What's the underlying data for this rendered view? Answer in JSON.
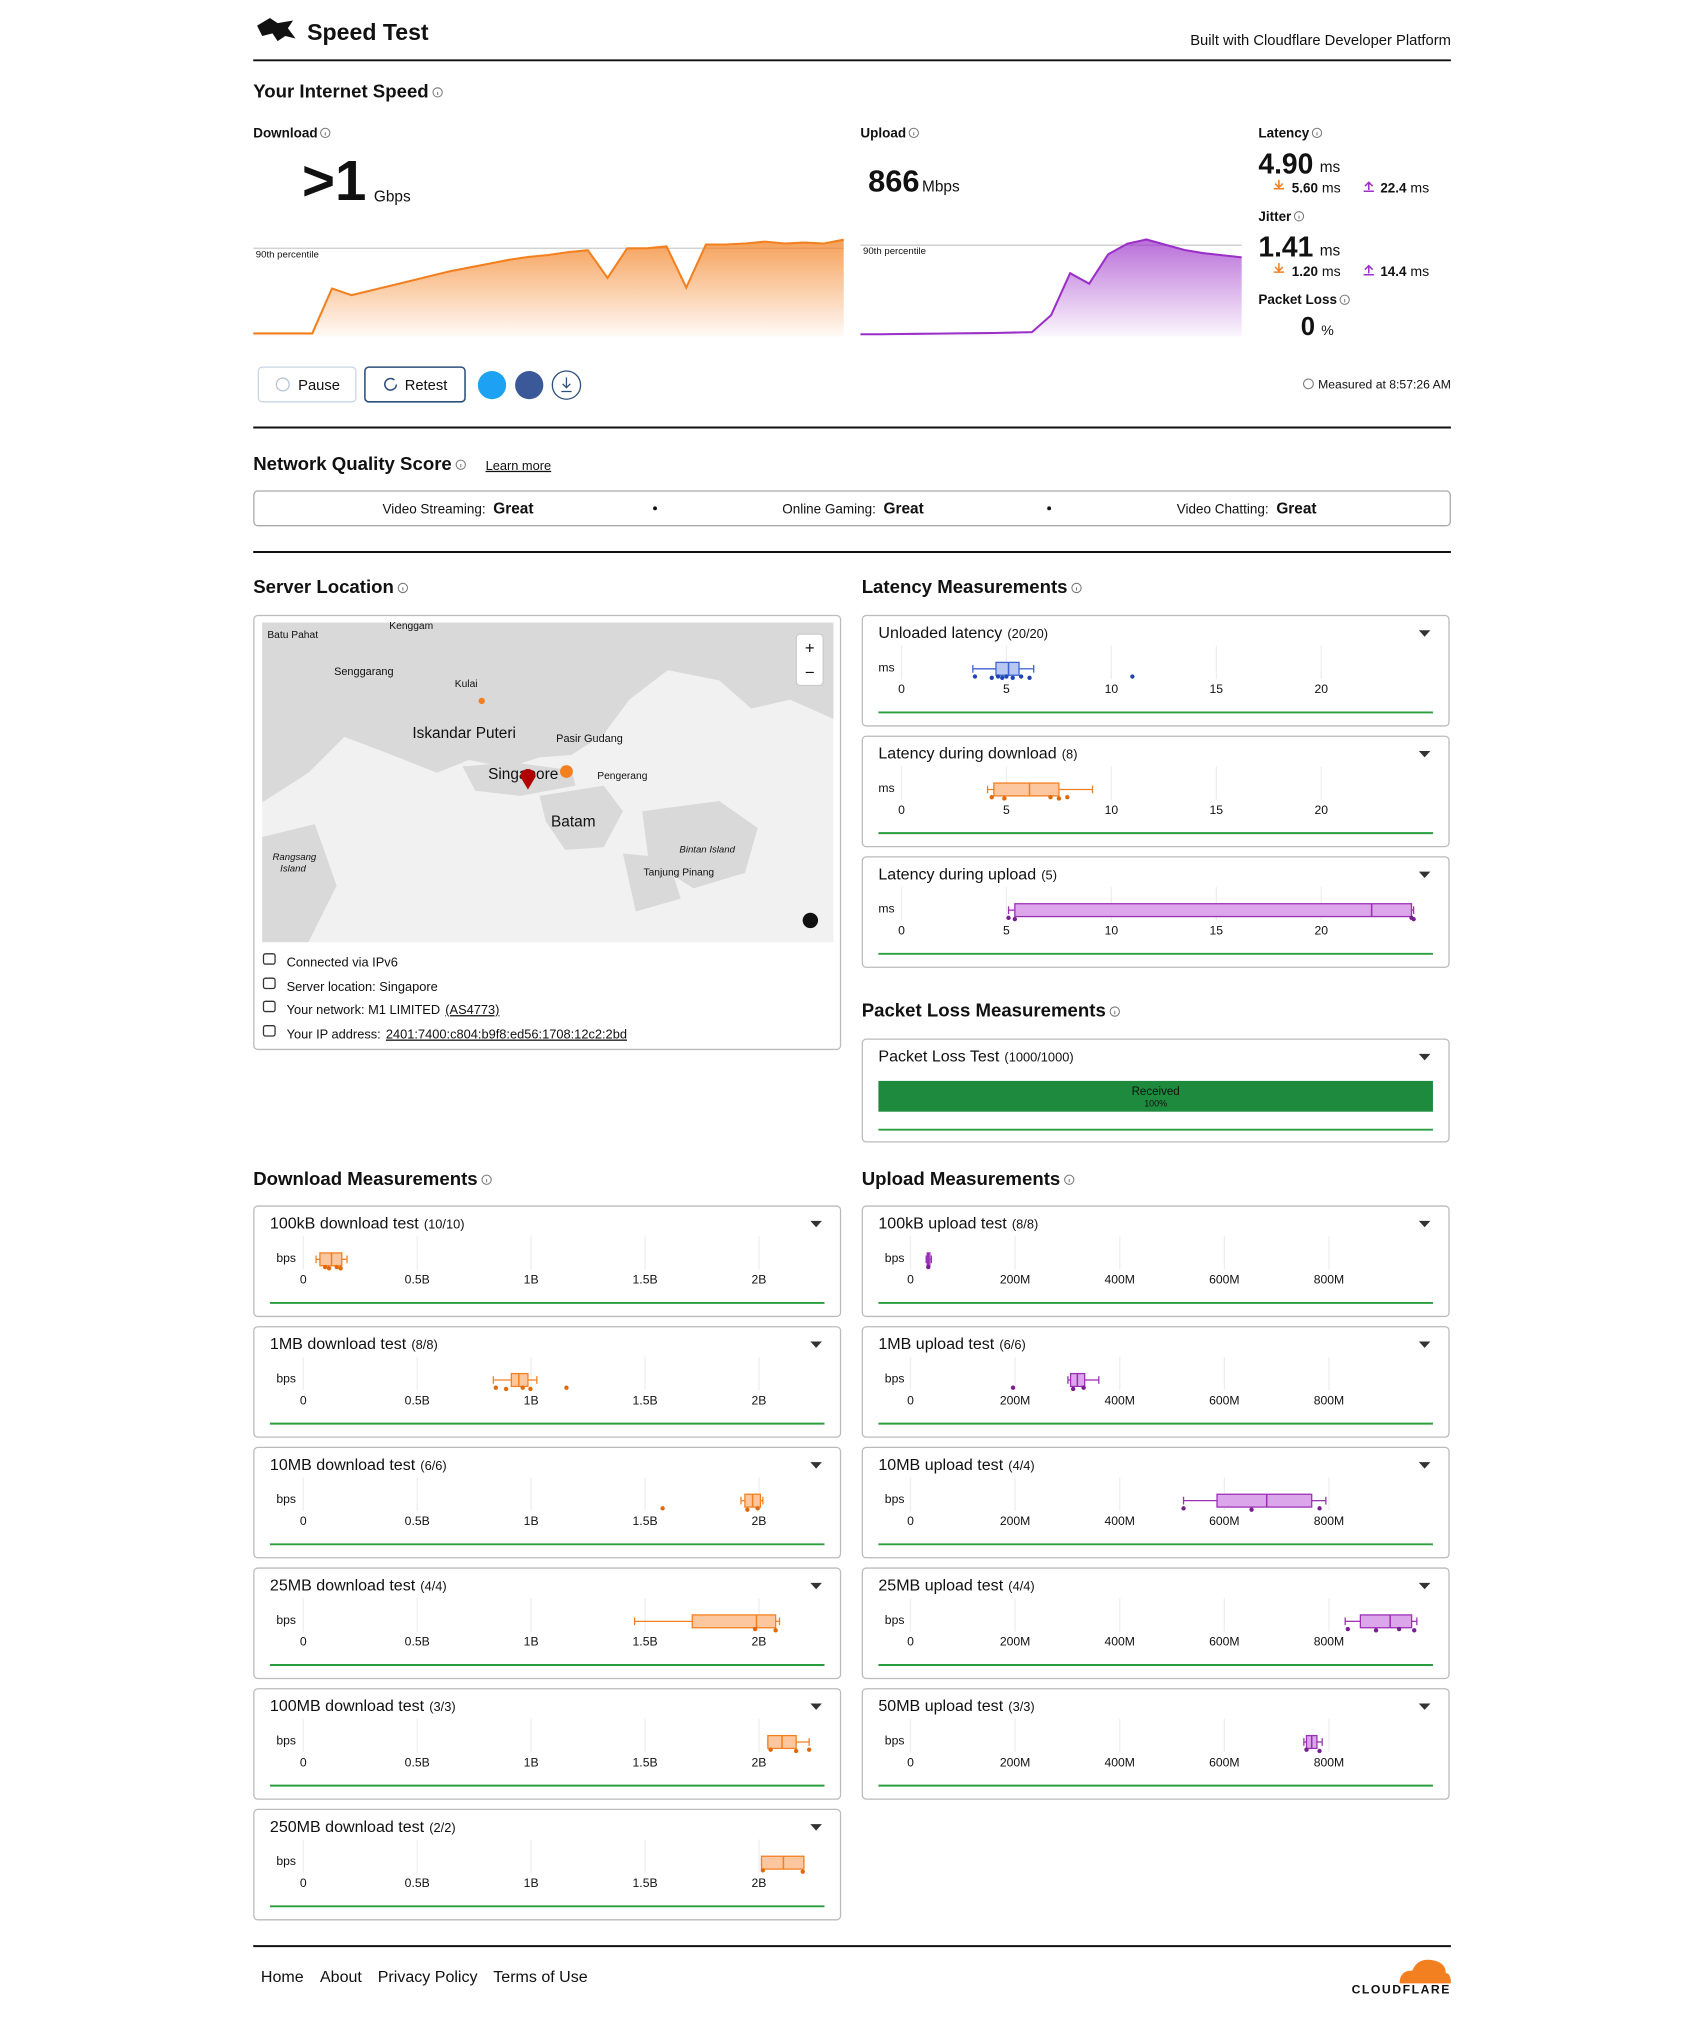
{
  "header": {
    "title": "Speed Test",
    "credit": "Built with Cloudflare Developer Platform"
  },
  "speed": {
    "title": "Your Internet Speed",
    "download": {
      "label": "Download",
      "value": ">1",
      "unit": "Gbps",
      "percentile_label": "90th percentile",
      "percentile": 920,
      "ylim": [
        0,
        1100
      ],
      "values": [
        30,
        30,
        30,
        30,
        500,
        430,
        480,
        530,
        580,
        630,
        680,
        720,
        760,
        800,
        830,
        850,
        880,
        900,
        610,
        920,
        920,
        940,
        510,
        960,
        960,
        970,
        990,
        970,
        980,
        970,
        1010
      ]
    },
    "upload": {
      "label": "Upload",
      "value": "866",
      "unit": "Mbps",
      "percentile_label": "90th percentile",
      "percentile": 866,
      "ylim": [
        0,
        1000
      ],
      "values": [
        20,
        20,
        22,
        24,
        26,
        28,
        30,
        32,
        36,
        40,
        200,
        600,
        500,
        780,
        880,
        920,
        870,
        820,
        790,
        770,
        750
      ]
    },
    "latency": {
      "label": "Latency",
      "value": "4.90",
      "unit": "ms",
      "down": "5.60",
      "down_unit": "ms",
      "up": "22.4",
      "up_unit": "ms"
    },
    "jitter": {
      "label": "Jitter",
      "value": "1.41",
      "unit": "ms",
      "down": "1.20",
      "down_unit": "ms",
      "up": "14.4",
      "up_unit": "ms"
    },
    "packet_loss": {
      "label": "Packet Loss",
      "value": "0",
      "unit": "%"
    },
    "buttons": [
      "Pause",
      "Retest"
    ],
    "measured": "Measured at 8:57:26 AM"
  },
  "quality": {
    "title": "Network Quality Score",
    "link": "Learn more",
    "items": [
      {
        "label": "Video Streaming:",
        "rating": "Great"
      },
      {
        "label": "Online Gaming:",
        "rating": "Great"
      },
      {
        "label": "Video Chatting:",
        "rating": "Great"
      }
    ]
  },
  "server": {
    "title": "Server Location",
    "map_labels": [
      "Batu Pahat",
      "Kenggam",
      "Senggarang",
      "Kulai",
      "Iskandar Puteri",
      "Pasir Gudang",
      "Singapore",
      "Pengerang",
      "Batam",
      "Rangsang",
      "Island",
      "Bintan Island",
      "Tanjung Pinang"
    ],
    "zoom": [
      "+",
      "−"
    ],
    "info": [
      {
        "text": "Connected via IPv6"
      },
      {
        "text": "Server location: Singapore"
      },
      {
        "text": "Your network: M1 LIMITED",
        "link": "(AS4773)"
      },
      {
        "text": "Your IP address:",
        "link": "2401:7400:c804:b9f8:ed56:1708:12c2:2bd"
      }
    ]
  },
  "latency_tests": {
    "title": "Latency Measurements",
    "unit": "ms",
    "xlim": [
      0,
      25
    ],
    "xticks": [
      0,
      5,
      10,
      15,
      20
    ],
    "tests": [
      {
        "name": "Unloaded latency",
        "count": "(20/20)",
        "box": {
          "min": 3.4,
          "q1": 4.5,
          "median": 5.1,
          "q3": 5.6,
          "max": 6.3
        },
        "points": [
          3.5,
          4.3,
          4.6,
          4.8,
          5.0,
          5.3,
          5.7,
          6.1,
          11.0
        ]
      },
      {
        "name": "Latency during download",
        "count": "(8)",
        "box": {
          "min": 4.1,
          "q1": 4.4,
          "median": 6.1,
          "q3": 7.5,
          "max": 9.1
        },
        "points": [
          4.3,
          4.9,
          7.1,
          7.5,
          7.9
        ]
      },
      {
        "name": "Latency during upload",
        "count": "(5)",
        "box": {
          "min": 5.1,
          "q1": 5.4,
          "median": 22.4,
          "q3": 24.3,
          "max": 24.4
        },
        "points": [
          5.1,
          5.4,
          24.3,
          24.4
        ]
      }
    ]
  },
  "packet_loss_tests": {
    "title": "Packet Loss Measurements",
    "name": "Packet Loss Test",
    "count": "(1000/1000)",
    "received": {
      "label": "Received",
      "value": 100,
      "value_label": "100%"
    }
  },
  "download_tests": {
    "title": "Download Measurements",
    "unit": "bps",
    "xlim": [
      0,
      2300000000
    ],
    "xticks": [
      0,
      {
        "value": 500000000,
        "label": "0.5B"
      },
      {
        "value": 1000000000,
        "label": "1B"
      },
      {
        "value": 1500000000,
        "label": "1.5B"
      },
      {
        "value": 2000000000,
        "label": "2B"
      }
    ],
    "tests": [
      {
        "name": "100kB download test",
        "count": "(10/10)",
        "box": {
          "min": 56000000,
          "q1": 73000000,
          "median": 124000000,
          "q3": 169000000,
          "max": 192000000
        },
        "points": [
          96000000,
          113000000,
          147000000,
          164000000
        ]
      },
      {
        "name": "1MB download test",
        "count": "(8/8)",
        "box": {
          "min": 834000000,
          "q1": 913000000,
          "median": 946000000,
          "q3": 986000000,
          "max": 1025000000
        },
        "points": [
          845000000,
          890000000,
          963000000,
          997000000,
          1155000000
        ]
      },
      {
        "name": "10MB download test",
        "count": "(6/6)",
        "box": {
          "min": 1921000000,
          "q1": 1938000000,
          "median": 1972000000,
          "q3": 2006000000,
          "max": 2017000000
        },
        "points": [
          1577000000,
          1949000000,
          1994000000
        ]
      },
      {
        "name": "25MB download test",
        "count": "(4/4)",
        "box": {
          "min": 1454000000,
          "q1": 1707000000,
          "median": 1989000000,
          "q3": 2073000000,
          "max": 2090000000
        },
        "points": [
          1983000000,
          2073000000
        ]
      },
      {
        "name": "100MB download test",
        "count": "(3/3)",
        "box": {
          "min": 2039000000,
          "q1": 2039000000,
          "median": 2101000000,
          "q3": 2163000000,
          "max": 2220000000
        },
        "points": [
          2051000000,
          2163000000,
          2220000000
        ]
      },
      {
        "name": "250MB download test",
        "count": "(2/2)",
        "box": {
          "min": 2011000000,
          "q1": 2011000000,
          "median": 2107000000,
          "q3": 2197000000,
          "max": 2197000000
        },
        "points": [
          2017000000,
          2192000000
        ]
      }
    ]
  },
  "upload_tests": {
    "title": "Upload Measurements",
    "unit": "bps",
    "xlim": [
      0,
      1000000000
    ],
    "xticks": [
      0,
      {
        "value": 200000000,
        "label": "200M"
      },
      {
        "value": 400000000,
        "label": "400M"
      },
      {
        "value": 600000000,
        "label": "600M"
      },
      {
        "value": 800000000,
        "label": "800M"
      }
    ],
    "tests": [
      {
        "name": "100kB upload test",
        "count": "(8/8)",
        "box": {
          "min": 30000000,
          "q1": 32000000,
          "median": 34000000,
          "q3": 37000000,
          "max": 40000000
        },
        "points": [
          34000000
        ]
      },
      {
        "name": "1MB upload test",
        "count": "(6/6)",
        "box": {
          "min": 301000000,
          "q1": 306000000,
          "median": 319000000,
          "q3": 333000000,
          "max": 360000000
        },
        "points": [
          196000000,
          311000000,
          331000000
        ]
      },
      {
        "name": "10MB upload test",
        "count": "(4/4)",
        "box": {
          "min": 522000000,
          "q1": 586000000,
          "median": 681000000,
          "q3": 767000000,
          "max": 794000000
        },
        "points": [
          522000000,
          652000000,
          782000000
        ]
      },
      {
        "name": "25MB upload test",
        "count": "(4/4)",
        "box": {
          "min": 831000000,
          "q1": 860000000,
          "median": 917000000,
          "q3": 958000000,
          "max": 968000000
        },
        "points": [
          836000000,
          890000000,
          934000000,
          963000000
        ]
      },
      {
        "name": "50MB upload test",
        "count": "(3/3)",
        "box": {
          "min": 752000000,
          "q1": 757000000,
          "median": 767000000,
          "q3": 777000000,
          "max": 787000000
        },
        "points": [
          757000000,
          782000000
        ]
      }
    ]
  },
  "footer": {
    "links": [
      "Home",
      "About",
      "Privacy Policy",
      "Terms of Use"
    ],
    "brand": "CLOUDFLARE"
  }
}
